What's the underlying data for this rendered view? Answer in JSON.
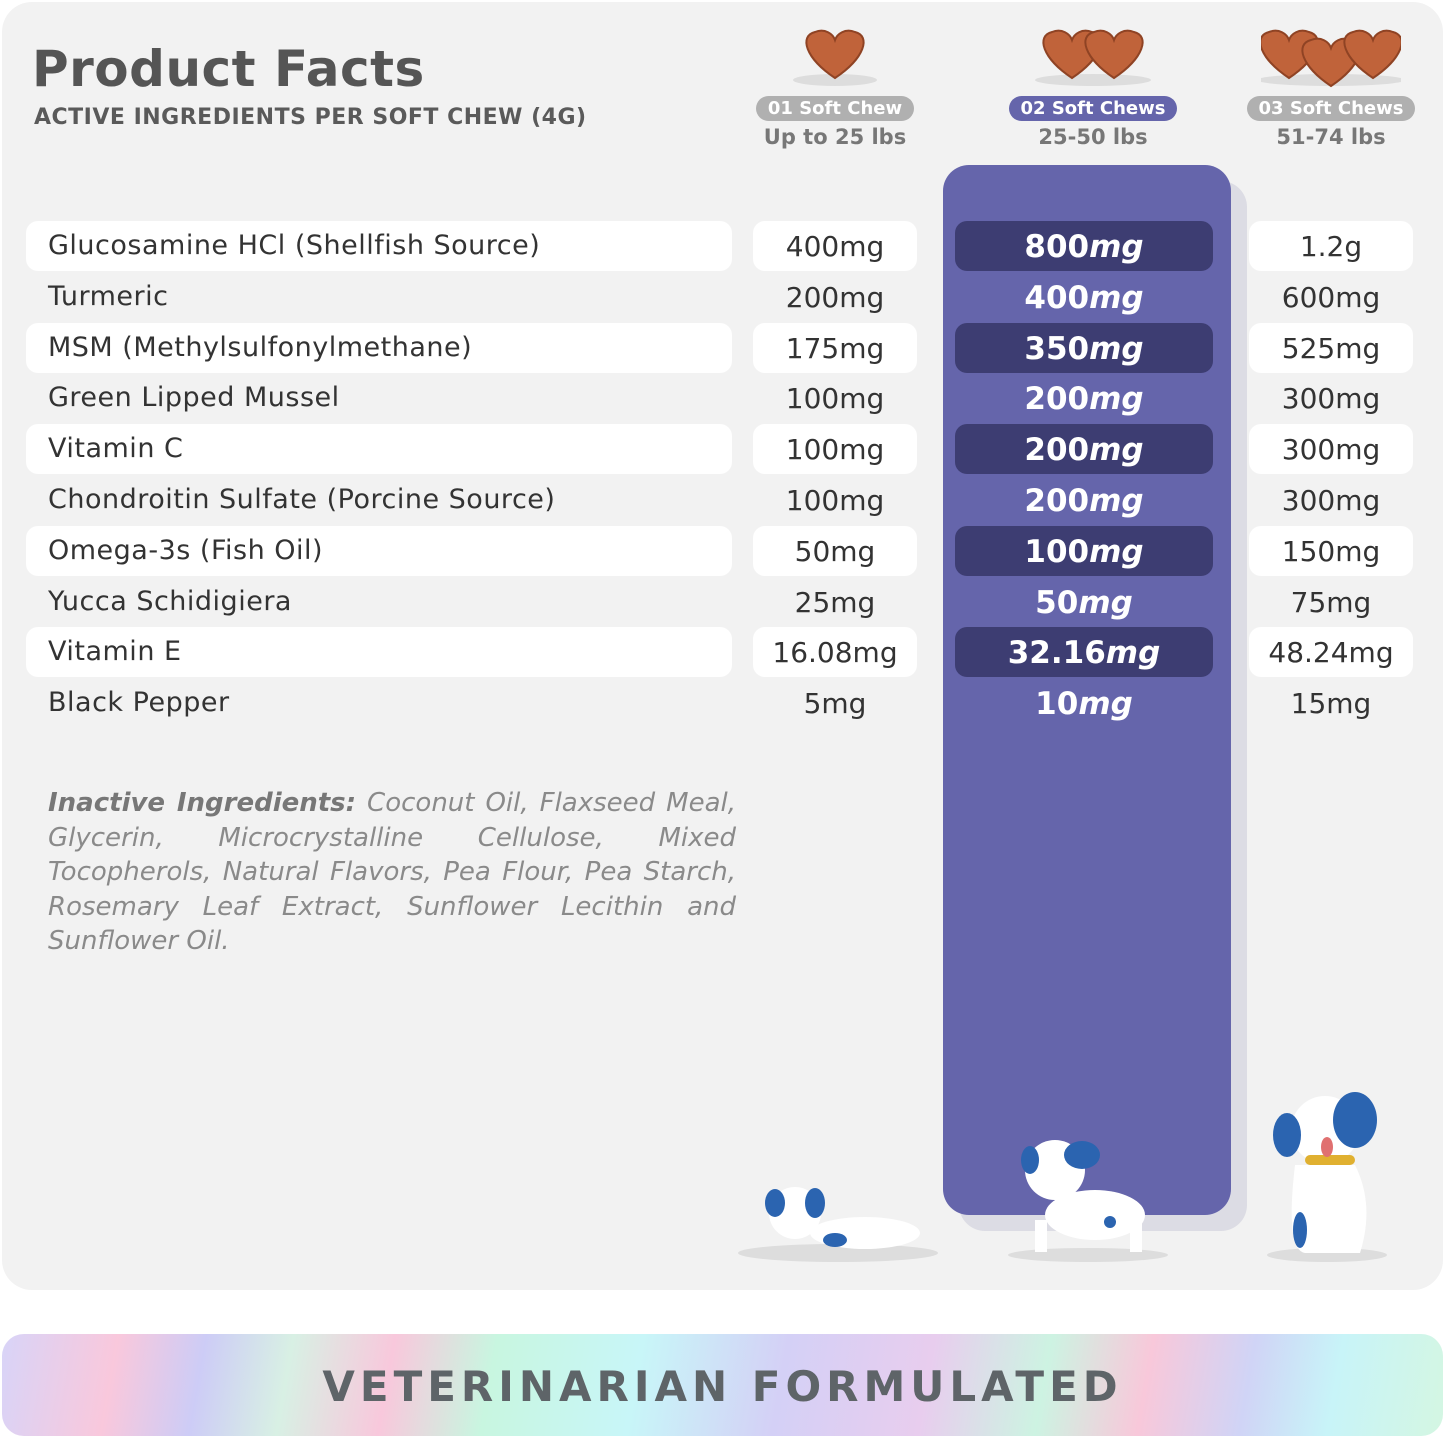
{
  "header": {
    "title": "Product Facts",
    "subtitle": "ACTIVE INGREDIENTS PER SOFT CHEW (4G)"
  },
  "columns": [
    {
      "badge": "01 Soft Chew",
      "weight": "Up to 25 lbs",
      "highlighted": false
    },
    {
      "badge": "02 Soft Chews",
      "weight": "25-50 lbs",
      "highlighted": true
    },
    {
      "badge": "03 Soft Chews",
      "weight": "51-74 lbs",
      "highlighted": false
    }
  ],
  "ingredients": [
    {
      "name": "Glucosamine HCl (Shellfish Source)",
      "v1": "400mg",
      "v2n": "800",
      "v2u": "mg",
      "v3": "1.2g"
    },
    {
      "name": "Turmeric",
      "v1": "200mg",
      "v2n": "400",
      "v2u": "mg",
      "v3": "600mg"
    },
    {
      "name": "MSM (Methylsulfonylmethane)",
      "v1": "175mg",
      "v2n": "350",
      "v2u": "mg",
      "v3": "525mg"
    },
    {
      "name": "Green Lipped Mussel",
      "v1": "100mg",
      "v2n": "200",
      "v2u": "mg",
      "v3": "300mg"
    },
    {
      "name": "Vitamin C",
      "v1": "100mg",
      "v2n": "200",
      "v2u": "mg",
      "v3": "300mg"
    },
    {
      "name": "Chondroitin Sulfate (Porcine Source)",
      "v1": "100mg",
      "v2n": "200",
      "v2u": "mg",
      "v3": "300mg"
    },
    {
      "name": "Omega-3s (Fish Oil)",
      "v1": "50mg",
      "v2n": "100",
      "v2u": "mg",
      "v3": "150mg"
    },
    {
      "name": "Yucca Schidigiera",
      "v1": "25mg",
      "v2n": "50",
      "v2u": "mg",
      "v3": "75mg"
    },
    {
      "name": "Vitamin E",
      "v1": "16.08mg",
      "v2n": "32.16",
      "v2u": "mg",
      "v3": "48.24mg"
    },
    {
      "name": "Black Pepper",
      "v1": "5mg",
      "v2n": "10",
      "v2u": "mg",
      "v3": "15mg"
    }
  ],
  "inactive": {
    "label": "Inactive Ingredients:",
    "text": " Coconut Oil, Flaxseed Meal, Glycerin, Microcrystalline Cellulose, Mixed Tocopherols, Natural Flavors, Pea Flour, Pea Starch, Rosemary Leaf Extract, Sunflower Lecithin and Sunflower Oil."
  },
  "banner": {
    "text": "VETERINARIAN FORMULATED"
  },
  "colors": {
    "accent": "#6565ab",
    "accent_dark": "#3d3d72",
    "chew": "#c0633a",
    "background": "#f2f2f2"
  },
  "icons": [
    "soft-chew-heart-icon",
    "puppy-lying-illustration",
    "puppy-walking-illustration",
    "puppy-sitting-illustration"
  ]
}
